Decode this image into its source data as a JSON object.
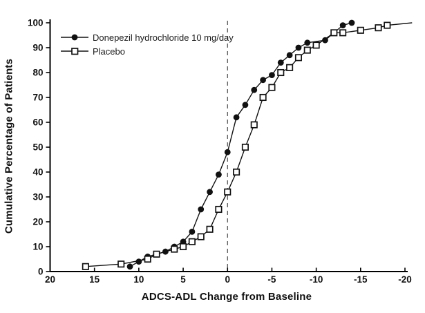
{
  "chart_data": {
    "type": "line",
    "title": "",
    "xlabel": "ADCS-ADL Change from Baseline",
    "ylabel": "Cumulative Percentage of Patients",
    "x_axis": {
      "range": [
        20,
        -20
      ],
      "reversed": true,
      "ticks": [
        20,
        15,
        10,
        5,
        0,
        -5,
        -10,
        -15,
        -20
      ]
    },
    "y_axis": {
      "range": [
        0,
        100
      ],
      "ticks": [
        0,
        10,
        20,
        30,
        40,
        50,
        60,
        70,
        80,
        90,
        100
      ]
    },
    "reference_line_x": 0,
    "grid": false,
    "legend_position": "top-left-inside",
    "line_color": "#111111",
    "series": [
      {
        "name": "Donepezil hydrochloride 10 mg/day",
        "marker": "filled-circle",
        "points": [
          [
            11,
            2
          ],
          [
            10,
            4
          ],
          [
            9,
            6
          ],
          [
            7,
            8
          ],
          [
            6,
            10
          ],
          [
            5,
            12
          ],
          [
            4,
            16
          ],
          [
            3,
            25
          ],
          [
            2,
            32
          ],
          [
            1,
            39
          ],
          [
            0,
            48
          ],
          [
            -1,
            62
          ],
          [
            -2,
            67
          ],
          [
            -3,
            73
          ],
          [
            -4,
            77
          ],
          [
            -5,
            79
          ],
          [
            -6,
            84
          ],
          [
            -7,
            87
          ],
          [
            -8,
            90
          ],
          [
            -9,
            92
          ],
          [
            -11,
            93
          ],
          [
            -12,
            96
          ],
          [
            -13,
            99
          ],
          [
            -14,
            100
          ]
        ]
      },
      {
        "name": "Placebo",
        "marker": "open-square",
        "points": [
          [
            16,
            2
          ],
          [
            12,
            3
          ],
          [
            9,
            5
          ],
          [
            8,
            7
          ],
          [
            6,
            9
          ],
          [
            5,
            10
          ],
          [
            4,
            12
          ],
          [
            3,
            14
          ],
          [
            2,
            17
          ],
          [
            1,
            25
          ],
          [
            0,
            32
          ],
          [
            -1,
            40
          ],
          [
            -2,
            50
          ],
          [
            -3,
            59
          ],
          [
            -4,
            70
          ],
          [
            -5,
            74
          ],
          [
            -6,
            80
          ],
          [
            -7,
            82
          ],
          [
            -8,
            86
          ],
          [
            -9,
            89
          ],
          [
            -10,
            91
          ],
          [
            -12,
            96
          ],
          [
            -13,
            96
          ],
          [
            -15,
            97
          ],
          [
            -17,
            98
          ],
          [
            -18,
            99
          ]
        ],
        "line_extension_to": [
          -20.8,
          100
        ]
      }
    ]
  }
}
